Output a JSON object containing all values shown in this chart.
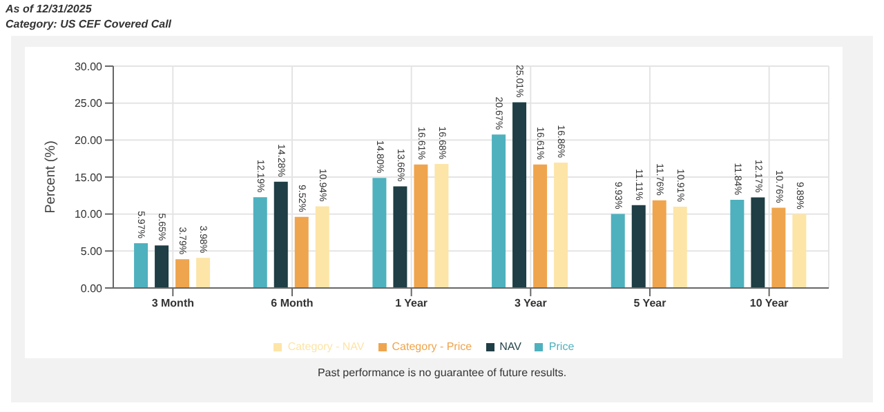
{
  "chart_data": {
    "type": "bar",
    "title": "As of 12/31/2025",
    "subtitle": "Category: US CEF Covered Call",
    "ylabel": "Percent (%)",
    "annotations": [
      "Past performance is no guarantee of future results."
    ],
    "categories": [
      "3 Month",
      "6 Month",
      "1 Year",
      "3 Year",
      "5 Year",
      "10 Year"
    ],
    "series": [
      {
        "name": "Price",
        "color": "#4fb1be",
        "values": [
          5.97,
          12.19,
          14.8,
          20.67,
          9.93,
          11.84
        ],
        "value_labels": [
          "5.97%",
          "12.19%",
          "14.80%",
          "20.67%",
          "9.93%",
          "11.84%"
        ]
      },
      {
        "name": "NAV",
        "color": "#1f3e45",
        "values": [
          5.65,
          14.28,
          13.66,
          25.01,
          11.11,
          12.17
        ],
        "value_labels": [
          "5.65%",
          "14.28%",
          "13.66%",
          "25.01%",
          "11.11%",
          "12.17%"
        ]
      },
      {
        "name": "Category - Price",
        "color": "#efa54e",
        "values": [
          3.79,
          9.52,
          16.61,
          16.61,
          11.76,
          10.76
        ],
        "value_labels": [
          "3.79%",
          "9.52%",
          "16.61%",
          "16.61%",
          "11.76%",
          "10.76%"
        ]
      },
      {
        "name": "Category - NAV",
        "color": "#fde5a8",
        "values": [
          3.98,
          10.94,
          16.68,
          16.86,
          10.91,
          9.89
        ],
        "value_labels": [
          "3.98%",
          "10.94%",
          "16.68%",
          "16.86%",
          "10.91%",
          "9.89%"
        ]
      }
    ],
    "ylim": [
      0,
      30
    ],
    "yticks": [
      {
        "value": 0,
        "label": "0.00"
      },
      {
        "value": 5,
        "label": "5.00"
      },
      {
        "value": 10,
        "label": "10.00"
      },
      {
        "value": 15,
        "label": "15.00"
      },
      {
        "value": 20,
        "label": "20.00"
      },
      {
        "value": 25,
        "label": "25.00"
      },
      {
        "value": 30,
        "label": "30.00"
      }
    ],
    "grid": true,
    "legend": "bottom"
  }
}
